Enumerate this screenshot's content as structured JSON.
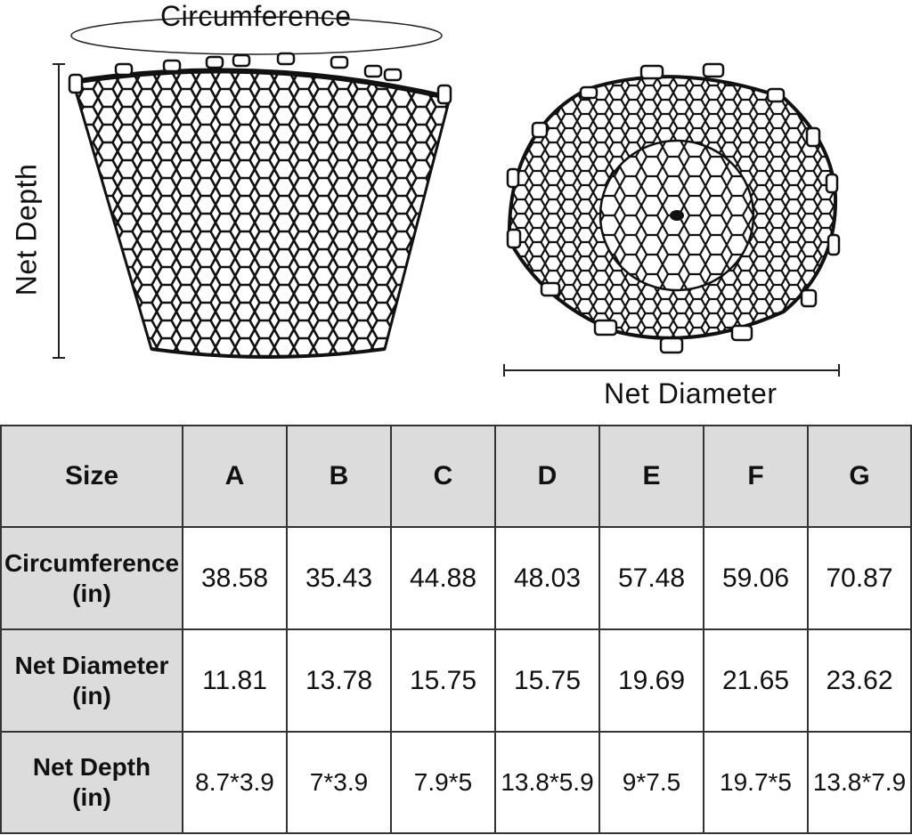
{
  "labels": {
    "circumference": "Circumference",
    "net_depth": "Net Depth",
    "net_diameter": "Net Diameter"
  },
  "table": {
    "header_label": "Size",
    "sizes": [
      "A",
      "B",
      "C",
      "D",
      "E",
      "F",
      "G"
    ],
    "rows": [
      {
        "name_line1": "Circumference",
        "name_line2": "(in)",
        "values": [
          "38.58",
          "35.43",
          "44.88",
          "48.03",
          "57.48",
          "59.06",
          "70.87"
        ]
      },
      {
        "name_line1": "Net Diameter",
        "name_line2": "(in)",
        "values": [
          "11.81",
          "13.78",
          "15.75",
          "15.75",
          "19.69",
          "21.65",
          "23.62"
        ]
      },
      {
        "name_line1": "Net Depth",
        "name_line2": "(in)",
        "values": [
          "8.7*3.9",
          "7*3.9",
          "7.9*5",
          "13.8*5.9",
          "9*7.5",
          "19.7*5",
          "13.8*7.9"
        ]
      }
    ]
  },
  "colors": {
    "header_bg": "#dcdcdc",
    "border": "#333333",
    "ink": "#111111"
  }
}
